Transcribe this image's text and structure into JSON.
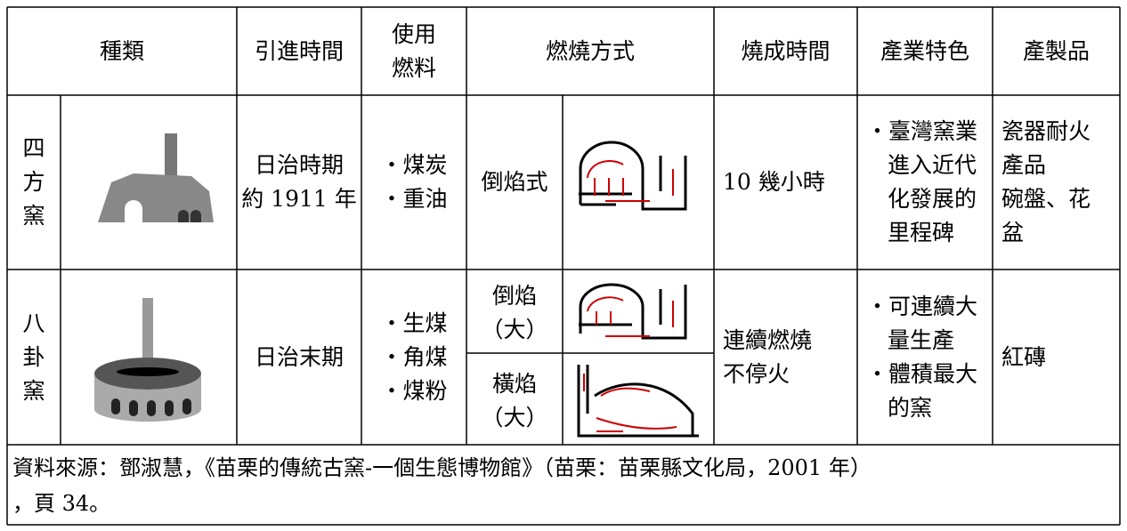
{
  "table": {
    "header": [
      [
        "種類"
      ],
      [
        "引進時間"
      ],
      [
        "使用",
        "燃料"
      ],
      [
        "燃燒方式"
      ],
      [
        "燒成時間"
      ],
      [
        "產業特色"
      ],
      [
        "產製品"
      ]
    ],
    "rows": [
      {
        "kind": [
          "四",
          "方",
          "窯"
        ],
        "introduced": [
          "日治時期",
          "約 1911 年"
        ],
        "fuel": [
          "・煤炭",
          "・重油"
        ],
        "firing": [
          [
            "倒焰式"
          ]
        ],
        "duration": [
          "10 幾小時"
        ],
        "features": [
          "・臺灣窯業",
          "進入近代",
          "化發展的",
          "里程碑"
        ],
        "products": [
          "瓷器耐火",
          "產品",
          "碗盤、花",
          "盆"
        ]
      },
      {
        "kind": [
          "八",
          "卦",
          "窯"
        ],
        "introduced": [
          "日治末期"
        ],
        "fuel": [
          "・生煤",
          "・角煤",
          "・煤粉"
        ],
        "firing": [
          [
            "倒焰",
            "（大）"
          ],
          [
            "橫焰",
            "（大）"
          ]
        ],
        "duration": [
          "連續燃燒",
          "不停火"
        ],
        "features": [
          "・可連續大",
          "量生產",
          "・體積最大",
          "的窯"
        ],
        "products": [
          "紅磚"
        ]
      }
    ],
    "source": [
      "資料來源：鄧淑慧，《苗栗的傳統古窯-一個生態博物館》（苗栗：苗栗縣文化局，2001 年）",
      "，頁 34。"
    ]
  }
}
